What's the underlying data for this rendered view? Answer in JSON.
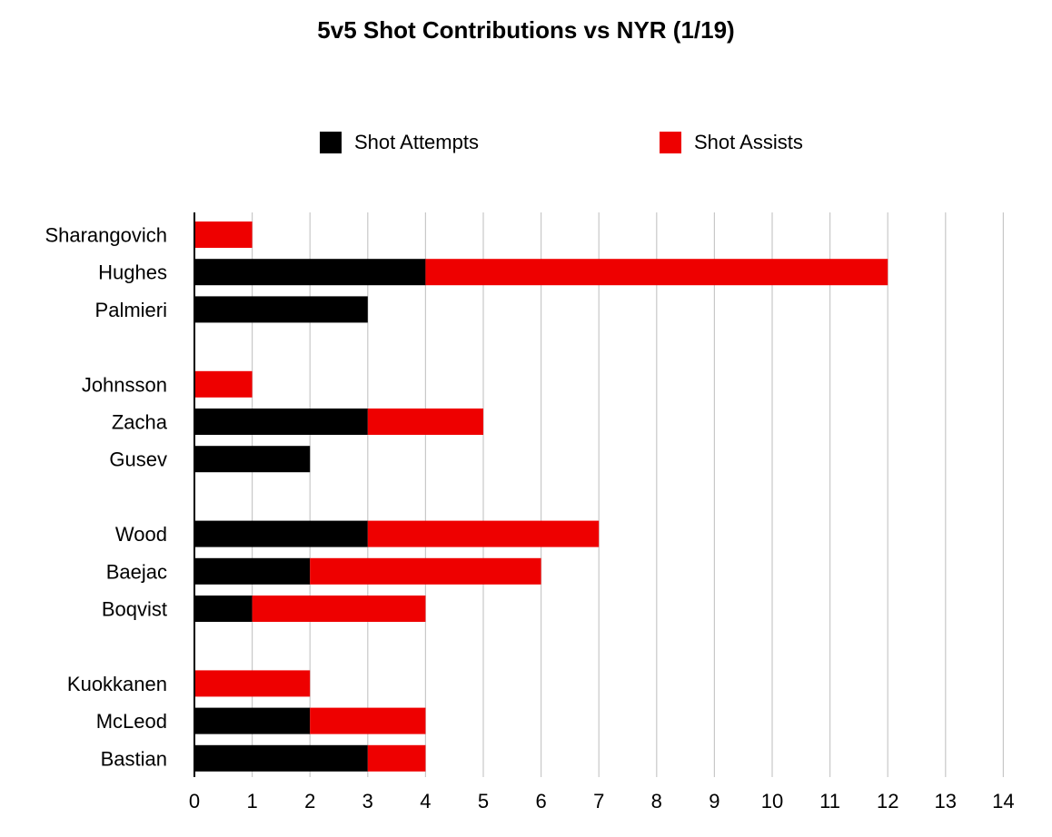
{
  "chart_data": {
    "type": "bar",
    "orientation": "horizontal",
    "stacked": true,
    "title": "5v5 Shot Contributions vs NYR (1/19)",
    "xlabel": "",
    "ylabel": "",
    "xlim": [
      0,
      14
    ],
    "x_ticks": [
      0,
      1,
      2,
      3,
      4,
      5,
      6,
      7,
      8,
      9,
      10,
      11,
      12,
      13,
      14
    ],
    "grid": "vertical",
    "legend_position": "top",
    "groups": [
      [
        "Sharangovich",
        "Hughes",
        "Palmieri"
      ],
      [
        "Johnsson",
        "Zacha",
        "Gusev"
      ],
      [
        "Wood",
        "Baejac",
        "Boqvist"
      ],
      [
        "Kuokkanen",
        "McLeod",
        "Bastian"
      ]
    ],
    "categories": [
      "Sharangovich",
      "Hughes",
      "Palmieri",
      "Johnsson",
      "Zacha",
      "Gusev",
      "Wood",
      "Baejac",
      "Boqvist",
      "Kuokkanen",
      "McLeod",
      "Bastian"
    ],
    "series": [
      {
        "name": "Shot Attempts",
        "color": "#000000",
        "values": [
          0,
          4,
          3,
          0,
          3,
          2,
          3,
          2,
          1,
          0,
          2,
          3
        ]
      },
      {
        "name": "Shot Assists",
        "color": "#ee0000",
        "values": [
          1,
          8,
          0,
          1,
          2,
          0,
          4,
          4,
          3,
          2,
          2,
          1
        ]
      }
    ]
  }
}
